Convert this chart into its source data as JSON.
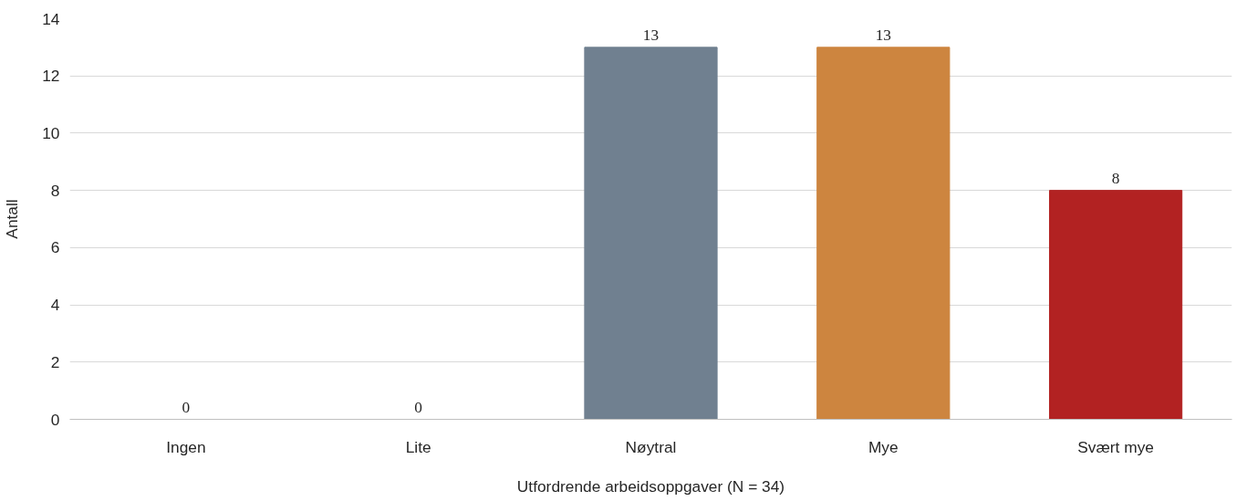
{
  "chart_data": {
    "type": "bar",
    "xlabel": "Utfordrende arbeidsoppgaver (N = 34)",
    "ylabel": "Antall",
    "categories": [
      "Ingen",
      "Lite",
      "Nøytral",
      "Mye",
      "Svært mye"
    ],
    "values": [
      0,
      0,
      13,
      13,
      8
    ],
    "colors": [
      "#4f81bd",
      "#9bbb59",
      "#708090",
      "#cd853f",
      "#b22222"
    ],
    "ylim": [
      0,
      14
    ],
    "yticks": [
      0,
      2,
      4,
      6,
      8,
      10,
      12,
      14
    ],
    "grid": "y",
    "data_labels": true
  }
}
